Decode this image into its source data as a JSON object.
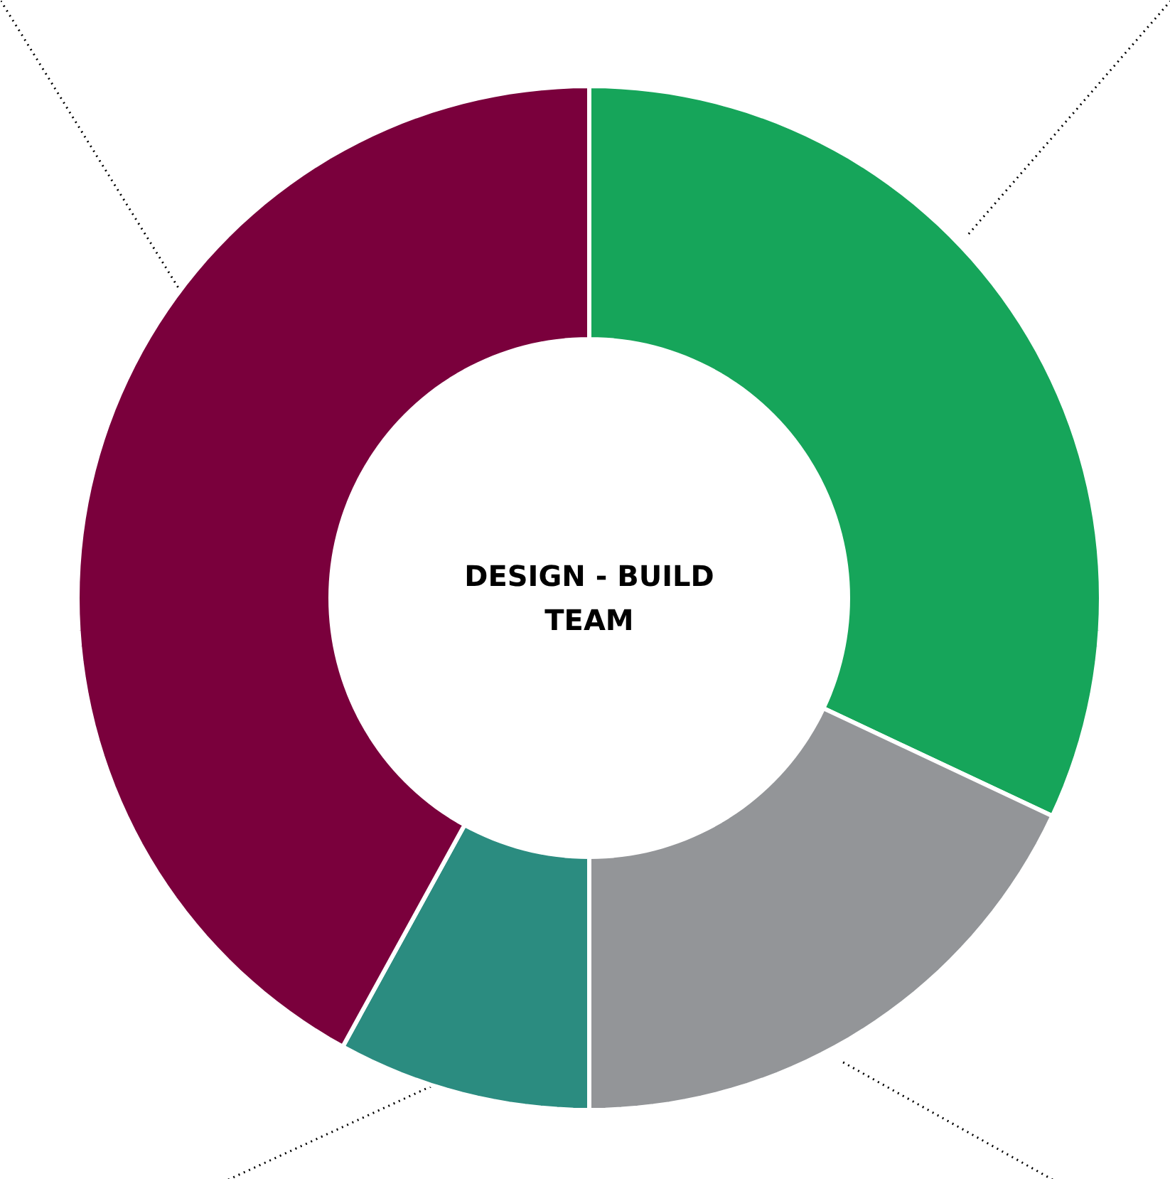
{
  "chart_data": {
    "type": "donut",
    "title": "DESIGN - BUILD\nTEAM",
    "categories": [
      null,
      null,
      null,
      null
    ],
    "values": [
      32,
      18,
      8,
      42
    ],
    "colors": [
      "#16a55a",
      "#939598",
      "#2b8c80",
      "#7a003c"
    ]
  }
}
